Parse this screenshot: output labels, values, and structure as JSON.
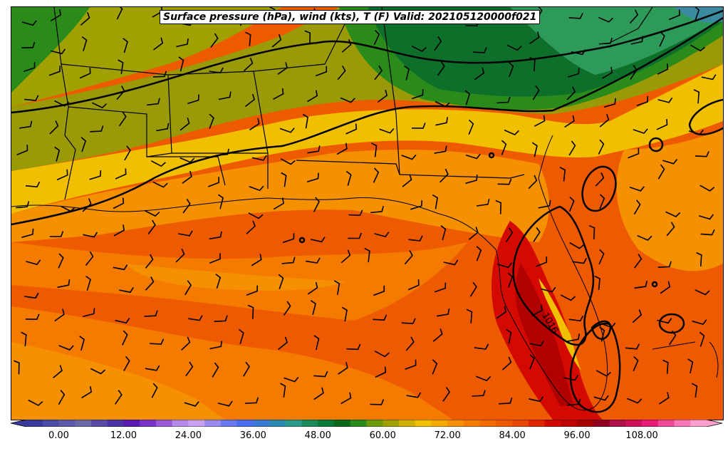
{
  "title": "Surface pressure (hPa), wind (kts), T (F) Valid: 202105120000f021",
  "isobar_label": "1016",
  "colorbar": {
    "min": -6,
    "max": 120,
    "step": 3,
    "tick_labels": [
      "0.00",
      "12.00",
      "24.00",
      "36.00",
      "48.00",
      "60.00",
      "72.00",
      "84.00",
      "96.00",
      "108.00"
    ],
    "tick_values": [
      0,
      12,
      24,
      36,
      48,
      60,
      72,
      84,
      96,
      108
    ],
    "colors": [
      "#3a3a9e",
      "#4a4aa8",
      "#5a5aa8",
      "#6a6aa8",
      "#5a4aa8",
      "#4a32a8",
      "#5a1ab4",
      "#7a32c8",
      "#9a5ad8",
      "#b48ae8",
      "#c8a0f0",
      "#9a8af0",
      "#6a78f0",
      "#4a6ef0",
      "#3a78d8",
      "#2a8ab4",
      "#2a9a8a",
      "#1a8a5a",
      "#0a7a3a",
      "#0a6a1a",
      "#2a8a1a",
      "#6a9a0a",
      "#a0a000",
      "#d0b000",
      "#f0c000",
      "#f5a800",
      "#f59000",
      "#f57a00",
      "#f26a00",
      "#ee5a00",
      "#e84600",
      "#e02800",
      "#d00a00",
      "#c00000",
      "#a80000",
      "#900020",
      "#b0104a",
      "#d0105a",
      "#e81a78",
      "#f04898",
      "#f878b8",
      "#fca0d0"
    ]
  },
  "legend_colors": {
    "cool_green": "#2e9a5a",
    "dark_green": "#0e6f2a",
    "green": "#2a8a1a",
    "olive": "#9a9a08",
    "yellow": "#f0c000",
    "light_orange": "#f59a00",
    "orange": "#f57a00",
    "deep_orange": "#ee5a00",
    "red": "#d40a00",
    "dark_red": "#b00000",
    "teal": "#3a8aa0"
  }
}
